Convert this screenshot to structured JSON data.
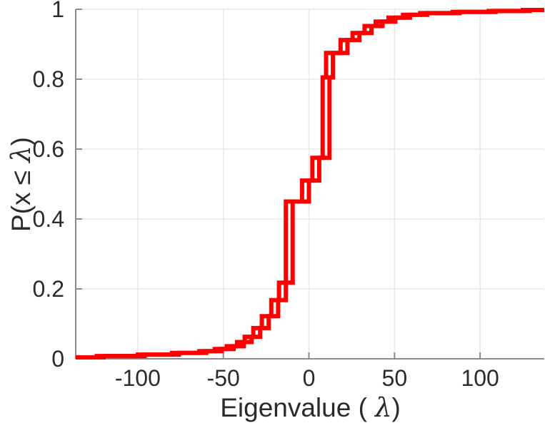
{
  "figure": {
    "background": "#ffffff"
  },
  "labels": {
    "x_prefix": "Eigenvalue (",
    "x_symbol": "λ",
    "x_suffix": ")",
    "y_prefix": "P(x ≤",
    "y_symbol": "λ",
    "y_suffix": ")"
  },
  "chart_data": {
    "type": "line",
    "subtype": "empirical-cdf-stairs",
    "title": "",
    "xlabel": "Eigenvalue ( λ)",
    "ylabel": "P(x ≤ λ)",
    "xlim": [
      -136.25,
      137.5
    ],
    "ylim": [
      0,
      1
    ],
    "xticks": [
      -100,
      -50,
      0,
      50,
      100
    ],
    "xtick_labels": [
      "-100",
      "-50",
      "0",
      "50",
      "100"
    ],
    "yticks": [
      0,
      0.2,
      0.4,
      0.6,
      0.8,
      1
    ],
    "ytick_labels": [
      "0",
      "0.2",
      "0.4",
      "0.6",
      "0.8",
      "1"
    ],
    "grid": true,
    "legend": null,
    "colors": {
      "line": "#ff0000",
      "grid": "#e8e8e8",
      "spine": "#8c8c8c",
      "text": "#2b2b2b"
    },
    "series": [
      {
        "name": "eigenvalue-cdf-1",
        "color": "#ff0000",
        "draw": "stairs",
        "start": [
          -136.25,
          0.004
        ],
        "steps": [
          [
            -124,
            0.008
          ],
          [
            -100,
            0.012
          ],
          [
            -80,
            0.017
          ],
          [
            -64,
            0.022
          ],
          [
            -55,
            0.028
          ],
          [
            -48,
            0.036
          ],
          [
            -42,
            0.048
          ],
          [
            -37.5,
            0.063
          ],
          [
            -32.5,
            0.088
          ],
          [
            -27.5,
            0.122
          ],
          [
            -22,
            0.168
          ],
          [
            -17.5,
            0.218
          ],
          [
            -13.5,
            0.45
          ],
          [
            -4,
            0.51
          ],
          [
            2,
            0.575
          ],
          [
            8,
            0.805
          ],
          [
            10,
            0.875
          ],
          [
            18.5,
            0.912
          ],
          [
            25.5,
            0.932
          ],
          [
            32.5,
            0.952
          ],
          [
            39,
            0.965
          ],
          [
            46.5,
            0.976
          ],
          [
            55,
            0.984
          ],
          [
            65,
            0.989
          ],
          [
            84,
            0.9925
          ],
          [
            105,
            0.995
          ],
          [
            125,
            0.998
          ]
        ],
        "end_x": 137.5
      },
      {
        "name": "eigenvalue-cdf-2",
        "color": "#ff0000",
        "draw": "stairs",
        "start": [
          -132.25,
          0.004
        ],
        "steps": [
          [
            -120,
            0.008
          ],
          [
            -96,
            0.012
          ],
          [
            -76,
            0.017
          ],
          [
            -60,
            0.022
          ],
          [
            -51,
            0.028
          ],
          [
            -44,
            0.036
          ],
          [
            -38,
            0.048
          ],
          [
            -33.5,
            0.063
          ],
          [
            -28.5,
            0.088
          ],
          [
            -23.5,
            0.122
          ],
          [
            -18,
            0.168
          ],
          [
            -13.5,
            0.218
          ],
          [
            -9.5,
            0.45
          ],
          [
            0,
            0.51
          ],
          [
            6,
            0.575
          ],
          [
            12,
            0.805
          ],
          [
            14,
            0.875
          ],
          [
            22.5,
            0.912
          ],
          [
            29.5,
            0.932
          ],
          [
            36.5,
            0.952
          ],
          [
            43,
            0.965
          ],
          [
            50.5,
            0.976
          ],
          [
            59,
            0.984
          ],
          [
            69,
            0.989
          ],
          [
            88,
            0.9925
          ],
          [
            109,
            0.995
          ],
          [
            129,
            0.998
          ]
        ],
        "end_x": 137.5
      }
    ]
  }
}
